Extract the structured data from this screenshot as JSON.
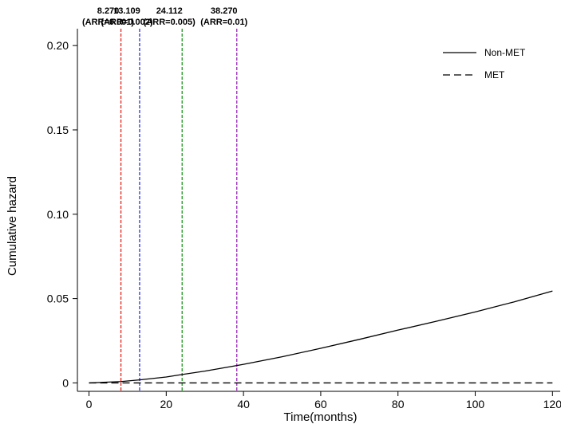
{
  "chart_data": {
    "type": "line",
    "title": "",
    "xlabel": "Time(months)",
    "ylabel": "Cumulative hazard",
    "xlim": [
      -3,
      122
    ],
    "ylim": [
      -0.005,
      0.21
    ],
    "xticks": [
      0,
      20,
      40,
      60,
      80,
      100,
      120
    ],
    "yticks": [
      0,
      0.05,
      0.1,
      0.15,
      0.2
    ],
    "ytick_labels": [
      "0",
      "0.05",
      "0.10",
      "0.15",
      "0.20"
    ],
    "grid": false,
    "legend": "top-right",
    "series": [
      {
        "name": "Non-MET",
        "style": "solid",
        "color": "#000000",
        "x": [
          0,
          8.27,
          13.109,
          20,
          24.112,
          30,
          38.27,
          40,
          50,
          60,
          70,
          80,
          90,
          100,
          110,
          120
        ],
        "y": [
          0,
          0.0008,
          0.0018,
          0.0035,
          0.005,
          0.007,
          0.0103,
          0.011,
          0.0155,
          0.0205,
          0.0258,
          0.0313,
          0.0366,
          0.0421,
          0.048,
          0.0545
        ]
      },
      {
        "name": "MET",
        "style": "dashed",
        "color": "#000000",
        "x": [
          0,
          120
        ],
        "y": [
          0,
          0
        ]
      }
    ],
    "vlines": [
      {
        "x": 8.27,
        "label1": "8.270",
        "label2": "(ARR=0.001)",
        "color": "#e8201a"
      },
      {
        "x": 13.109,
        "label1": "13.109",
        "label2": "(ARR=0.002)",
        "color": "#2b35e0"
      },
      {
        "x": 24.112,
        "label1": "24.112",
        "label2": "(ARR=0.005)",
        "color": "#1a9a1a"
      },
      {
        "x": 38.27,
        "label1": "38.270",
        "label2": "(ARR=0.01)",
        "color": "#9a22b8"
      }
    ]
  }
}
